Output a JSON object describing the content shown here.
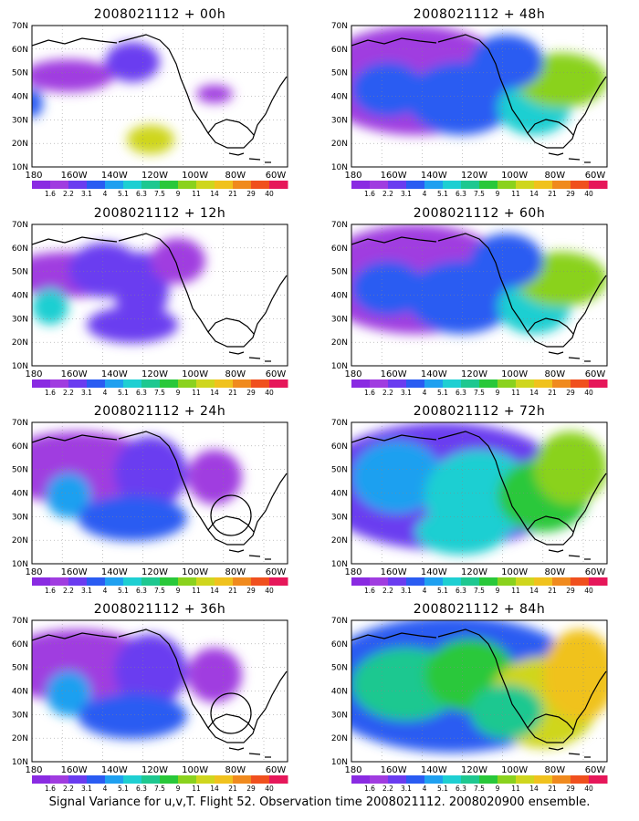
{
  "caption": "Signal Variance for u,v,T. Flight 52. Observation time 2008021112. 2008020900 ensemble.",
  "lat_labels": [
    "70N",
    "60N",
    "50N",
    "40N",
    "30N",
    "20N",
    "10N"
  ],
  "lon_labels": [
    "180",
    "160W",
    "140W",
    "120W",
    "100W",
    "80W",
    "60W"
  ],
  "colorbar": {
    "levels": [
      "1.6",
      "2.2",
      "3.1",
      "4",
      "5.1",
      "6.3",
      "7.5",
      "9",
      "11",
      "14",
      "21",
      "29",
      "40"
    ],
    "colors": [
      "#8a2be2",
      "#a03ce0",
      "#6a3cf0",
      "#2a5cf2",
      "#1fa0f0",
      "#1ecfd2",
      "#1ec890",
      "#29c83a",
      "#8ad21e",
      "#cfd61e",
      "#f0c21e",
      "#f08a1e",
      "#f0501e",
      "#e6175a"
    ]
  },
  "panels": [
    {
      "id": "p00",
      "title": "2008021112 + 00h",
      "level": 0
    },
    {
      "id": "p48",
      "title": "2008021112 + 48h",
      "level": 3
    },
    {
      "id": "p12",
      "title": "2008021112 + 12h",
      "level": 1
    },
    {
      "id": "p60",
      "title": "2008021112 + 60h",
      "level": 3
    },
    {
      "id": "p24",
      "title": "2008021112 + 24h",
      "level": 2,
      "circle": true
    },
    {
      "id": "p72",
      "title": "2008021112 + 72h",
      "level": 4
    },
    {
      "id": "p36",
      "title": "2008021112 + 36h",
      "level": 2,
      "circle": true
    },
    {
      "id": "p84",
      "title": "2008021112 + 84h",
      "level": 5
    }
  ],
  "show_colorbar_labels": true,
  "grid": "dotted"
}
